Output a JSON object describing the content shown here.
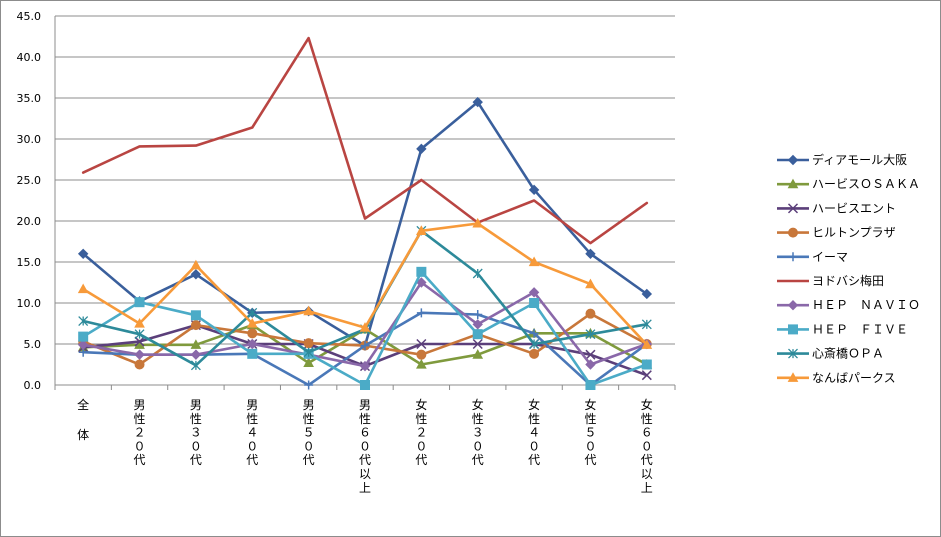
{
  "chart_data": {
    "type": "line",
    "title": "",
    "xlabel": "",
    "ylabel": "",
    "ylim": [
      0,
      45
    ],
    "ytick_step": 5,
    "ytick_labels": [
      "0.0",
      "5.0",
      "10.0",
      "15.0",
      "20.0",
      "25.0",
      "30.0",
      "35.0",
      "40.0",
      "45.0"
    ],
    "grid": true,
    "legend_position": "right",
    "categories": [
      "全体",
      "男性２０代",
      "男性３０代",
      "男性４０代",
      "男性５０代",
      "男性６０代以上",
      "女性２０代",
      "女性３０代",
      "女性４０代",
      "女性５０代",
      "女性６０代以上"
    ],
    "series": [
      {
        "name": "ディアモール大阪",
        "color": "#3a5f9c",
        "marker": "diamond",
        "values": [
          16.0,
          10.2,
          13.5,
          8.8,
          9.0,
          4.8,
          28.8,
          34.5,
          23.8,
          16.0,
          11.1
        ]
      },
      {
        "name": "ハービスＯＳＡＫＡ",
        "color": "#7f9a3d",
        "marker": "triangle",
        "values": [
          4.6,
          4.9,
          4.9,
          7.3,
          2.7,
          6.8,
          2.5,
          3.7,
          6.3,
          6.3,
          2.5
        ]
      },
      {
        "name": "ハービスエント",
        "color": "#5b3f7a",
        "marker": "x",
        "values": [
          4.6,
          5.3,
          7.3,
          5.0,
          5.0,
          2.3,
          5.0,
          5.0,
          5.0,
          3.7,
          1.2
        ]
      },
      {
        "name": "ヒルトンプラザ",
        "color": "#c8773a",
        "marker": "circle",
        "values": [
          5.3,
          2.5,
          7.3,
          6.3,
          5.1,
          4.8,
          3.7,
          6.2,
          3.8,
          8.7,
          5.0
        ]
      },
      {
        "name": "イーマ",
        "color": "#4a78b8",
        "marker": "plus",
        "values": [
          4.0,
          3.7,
          3.7,
          3.8,
          0.0,
          4.8,
          8.8,
          8.6,
          6.3,
          0.0,
          5.0
        ]
      },
      {
        "name": "ヨドバシ梅田",
        "color": "#b94542",
        "marker": "none",
        "values": [
          25.9,
          29.1,
          29.2,
          31.4,
          42.3,
          20.3,
          25.0,
          19.8,
          22.5,
          17.3,
          22.2
        ]
      },
      {
        "name": "ＨＥＰ　ＮＡＶＩＯ",
        "color": "#8a68a9",
        "marker": "diamond",
        "values": [
          4.9,
          3.7,
          3.7,
          5.0,
          3.7,
          2.3,
          12.5,
          7.4,
          11.3,
          2.5,
          5.0
        ]
      },
      {
        "name": "ＨＥＰ　ＦＩＶＥ",
        "color": "#4babc7",
        "marker": "square",
        "values": [
          5.9,
          10.1,
          8.5,
          3.8,
          3.8,
          0.0,
          13.8,
          6.2,
          10.0,
          0.0,
          2.5
        ]
      },
      {
        "name": "心斎橋ＯＰＡ",
        "color": "#2d8a9a",
        "marker": "asterisk",
        "values": [
          7.8,
          6.2,
          2.4,
          8.8,
          4.0,
          6.8,
          18.8,
          13.6,
          5.0,
          6.2,
          7.4
        ]
      },
      {
        "name": "なんばパークス",
        "color": "#f79a3a",
        "marker": "triangle",
        "values": [
          11.7,
          7.5,
          14.6,
          7.5,
          9.0,
          7.0,
          18.8,
          19.7,
          15.0,
          12.3,
          4.9
        ]
      }
    ]
  }
}
